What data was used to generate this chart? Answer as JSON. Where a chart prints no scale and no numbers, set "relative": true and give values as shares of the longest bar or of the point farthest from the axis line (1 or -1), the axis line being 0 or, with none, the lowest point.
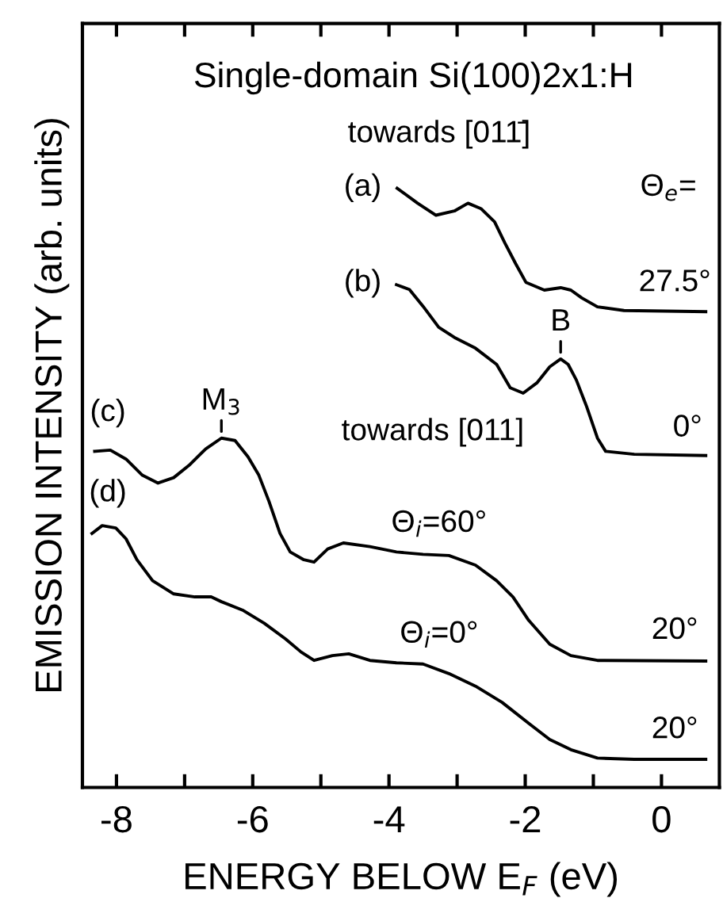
{
  "chart_data": {
    "type": "line",
    "relative": true,
    "title": "Single-domain Si(100)2x1:H",
    "xlabel": "ENERGY BELOW E$_{F}$ (eV)",
    "ylabel": "EMISSION INTENSITY (arb. units)",
    "xlim": [
      -8.5,
      0.85
    ],
    "xticks": [
      -8,
      {
        "value": -7,
        "label": null
      },
      -6,
      {
        "value": -5,
        "label": null
      },
      -4,
      {
        "value": -3,
        "label": null
      },
      -2,
      {
        "value": -1,
        "label": null
      },
      0
    ],
    "grid": false,
    "legend": false,
    "marker": "none",
    "line_style": "solid",
    "series": [
      {
        "color": "#000000",
        "x": [
          -3.88,
          -3.58,
          -3.31,
          -3.04,
          -2.84,
          -2.65,
          -2.45,
          -2.3,
          -2.14,
          -1.99,
          -1.72,
          -1.48,
          -1.33,
          -1.17,
          -0.94,
          -0.55,
          0.65
        ],
        "values": [
          1.0,
          0.975,
          0.955,
          0.962,
          0.975,
          0.966,
          0.944,
          0.909,
          0.874,
          0.843,
          0.83,
          0.834,
          0.83,
          0.817,
          0.802,
          0.796,
          0.794
        ]
      },
      {
        "color": "#000000",
        "x": [
          -3.89,
          -3.7,
          -3.5,
          -3.27,
          -3.04,
          -2.73,
          -2.42,
          -2.22,
          -2.03,
          -1.83,
          -1.64,
          -1.48,
          -1.37,
          -1.25,
          -1.1,
          -0.94,
          -0.82,
          -0.4,
          0.65
        ],
        "values": [
          0.839,
          0.831,
          0.803,
          0.768,
          0.751,
          0.733,
          0.706,
          0.667,
          0.658,
          0.675,
          0.702,
          0.715,
          0.706,
          0.68,
          0.636,
          0.583,
          0.561,
          0.556,
          0.554
        ]
      },
      {
        "color": "#000000",
        "x": [
          -8.32,
          -8.09,
          -7.86,
          -7.62,
          -7.39,
          -7.16,
          -6.92,
          -6.69,
          -6.46,
          -6.26,
          -6.07,
          -5.91,
          -5.76,
          -5.6,
          -5.45,
          -5.25,
          -5.1,
          -4.9,
          -4.67,
          -4.28,
          -3.89,
          -3.5,
          -3.12,
          -2.73,
          -2.42,
          -2.18,
          -1.95,
          -1.64,
          -1.33,
          -0.94,
          0.65
        ],
        "values": [
          0.561,
          0.563,
          0.548,
          0.521,
          0.508,
          0.517,
          0.539,
          0.565,
          0.583,
          0.579,
          0.552,
          0.521,
          0.477,
          0.424,
          0.393,
          0.38,
          0.376,
          0.398,
          0.408,
          0.402,
          0.393,
          0.389,
          0.387,
          0.371,
          0.345,
          0.318,
          0.279,
          0.239,
          0.22,
          0.212,
          0.211
        ]
      },
      {
        "color": "#000000",
        "x": [
          -8.36,
          -8.21,
          -8.01,
          -7.86,
          -7.7,
          -7.47,
          -7.16,
          -6.85,
          -6.61,
          -6.46,
          -6.15,
          -5.83,
          -5.52,
          -5.29,
          -5.1,
          -4.83,
          -4.59,
          -4.28,
          -3.89,
          -3.5,
          -3.12,
          -2.73,
          -2.34,
          -1.95,
          -1.64,
          -1.33,
          -0.94,
          -0.4,
          0.65
        ],
        "values": [
          0.424,
          0.437,
          0.433,
          0.415,
          0.38,
          0.345,
          0.323,
          0.318,
          0.318,
          0.31,
          0.296,
          0.274,
          0.248,
          0.226,
          0.212,
          0.22,
          0.223,
          0.212,
          0.208,
          0.206,
          0.19,
          0.169,
          0.142,
          0.107,
          0.08,
          0.063,
          0.049,
          0.047,
          0.047
        ]
      }
    ],
    "annotations": [
      "towards [011̄]",
      "(a)",
      "(b)",
      "(c)",
      "(d)",
      "Θ$_{e}$=",
      "27.5°",
      "0°",
      "20°",
      "20°",
      {
        "text": "M$_{3}$",
        "x": -6.46,
        "y": 0.583
      },
      {
        "text": "B",
        "x": -1.48,
        "y": 0.715
      },
      "towards [011]",
      "Θ$_{i}$=60°",
      "Θ$_{i}$=0°"
    ]
  }
}
